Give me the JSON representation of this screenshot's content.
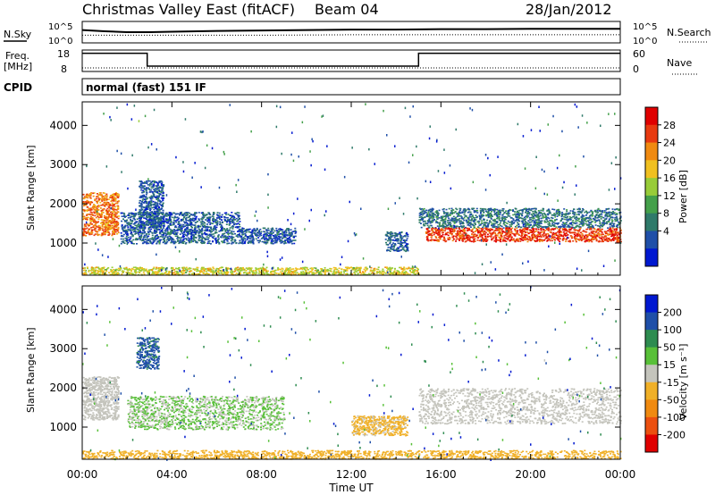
{
  "header": {
    "station_title": "Christmas Valley East (fitACF)",
    "beam_label": "Beam 04",
    "date": "28/Jan/2012"
  },
  "nsky_panel": {
    "left_label": "N.Sky",
    "right_label": "N.Search",
    "left_ticks": [
      "10^5",
      "10^0"
    ],
    "right_ticks": [
      "10^5",
      "10^0"
    ]
  },
  "freq_panel": {
    "left_label_line1": "Freq.",
    "left_label_line2": "[MHz]",
    "right_label": "Nave",
    "left_ticks": [
      "18",
      "8"
    ],
    "right_ticks": [
      "60",
      "0"
    ]
  },
  "cpid": {
    "label": "CPID",
    "value": "normal (fast) 151 IF"
  },
  "axes": {
    "xlabel": "Time UT",
    "ylabel": "Slant Range [km]",
    "x_ticks": [
      "00:00",
      "04:00",
      "08:00",
      "12:00",
      "16:00",
      "20:00",
      "00:00"
    ],
    "y_ticks": [
      "1000",
      "2000",
      "3000",
      "4000"
    ]
  },
  "colorbars": {
    "power": {
      "label": "Power [dB]",
      "ticks": [
        "4",
        "8",
        "12",
        "16",
        "20",
        "24",
        "28"
      ],
      "colors": [
        "#0018d0",
        "#1f4fa8",
        "#2f7a6a",
        "#44a04a",
        "#98cc38",
        "#f0c020",
        "#f08a10",
        "#e83a10",
        "#e00000"
      ]
    },
    "velocity": {
      "label": "Velocity [m s⁻¹]",
      "ticks": [
        "200",
        "100",
        "50",
        "15",
        "-15",
        "-50",
        "-100",
        "-200"
      ],
      "colors": [
        "#0018d0",
        "#1f4fa8",
        "#2e8c50",
        "#58c038",
        "#c4c4bc",
        "#f0b028",
        "#f08a10",
        "#ec5010",
        "#e00000"
      ]
    }
  },
  "chart_data": [
    {
      "type": "line",
      "title": "N.Sky / N.Search",
      "x_range_hours": [
        0,
        24
      ],
      "series": [
        {
          "name": "N.Sky",
          "x": [
            0,
            1,
            2,
            3,
            4,
            6,
            8,
            10,
            12,
            14,
            16,
            18,
            20,
            22,
            24
          ],
          "values": [
            3.0,
            2.7,
            2.5,
            2.5,
            2.6,
            2.8,
            2.9,
            3.0,
            3.1,
            3.1,
            3.2,
            3.2,
            3.3,
            3.3,
            3.3
          ]
        },
        {
          "name": "N.Search",
          "x": [
            0,
            4,
            8,
            12,
            16,
            20,
            24
          ],
          "values": [
            1.8,
            1.8,
            1.8,
            1.9,
            1.9,
            1.9,
            1.9
          ]
        }
      ]
    },
    {
      "type": "line",
      "title": "Freq. [MHz] / Nave",
      "x_range_hours": [
        0,
        24
      ],
      "ylim": [
        8,
        18
      ],
      "series": [
        {
          "name": "Freq.",
          "x": [
            0,
            2.9,
            2.9,
            15.0,
            15.0,
            24
          ],
          "values": [
            16.5,
            16.5,
            10.5,
            10.5,
            16.5,
            16.5
          ]
        },
        {
          "name": "Nave",
          "x": [
            0,
            24
          ],
          "values": [
            10,
            10
          ]
        }
      ]
    },
    {
      "type": "heatmap",
      "title": "Power [dB]",
      "xlabel": "Time UT",
      "ylabel": "Slant Range [km]",
      "x_range_hours": [
        0,
        24
      ],
      "ylim": [
        180,
        4600
      ],
      "regions": [
        {
          "t0": 0.0,
          "t1": 1.6,
          "r0": 1200,
          "r1": 2300,
          "value": 24
        },
        {
          "t0": 1.7,
          "t1": 7.0,
          "r0": 1000,
          "r1": 1800,
          "value": 6
        },
        {
          "t0": 2.5,
          "t1": 3.6,
          "r0": 1400,
          "r1": 2600,
          "value": 6
        },
        {
          "t0": 7.0,
          "t1": 9.5,
          "r0": 1000,
          "r1": 1400,
          "value": 6
        },
        {
          "t0": 13.5,
          "t1": 14.5,
          "r0": 800,
          "r1": 1300,
          "value": 6
        },
        {
          "t0": 15.0,
          "t1": 24.0,
          "r0": 1400,
          "r1": 1900,
          "value": 8
        },
        {
          "t0": 15.3,
          "t1": 24.0,
          "r0": 1050,
          "r1": 1400,
          "value": 27
        },
        {
          "t0": 0.0,
          "t1": 15.0,
          "r0": 200,
          "r1": 400,
          "value": 18
        }
      ]
    },
    {
      "type": "heatmap",
      "title": "Velocity [m s⁻¹]",
      "xlabel": "Time UT",
      "ylabel": "Slant Range [km]",
      "x_range_hours": [
        0,
        24
      ],
      "ylim": [
        180,
        4600
      ],
      "regions": [
        {
          "t0": 0.0,
          "t1": 1.6,
          "r0": 1200,
          "r1": 2300,
          "value": 0
        },
        {
          "t0": 2.0,
          "t1": 9.0,
          "r0": 950,
          "r1": 1800,
          "value": 30
        },
        {
          "t0": 2.4,
          "t1": 3.4,
          "r0": 2500,
          "r1": 3300,
          "value": 150
        },
        {
          "t0": 15.0,
          "t1": 24.0,
          "r0": 1100,
          "r1": 2000,
          "value": 0
        },
        {
          "t0": 12.0,
          "t1": 14.5,
          "r0": 800,
          "r1": 1300,
          "value": -40
        },
        {
          "t0": 0.0,
          "t1": 24.0,
          "r0": 200,
          "r1": 420,
          "value": -60
        }
      ]
    }
  ]
}
